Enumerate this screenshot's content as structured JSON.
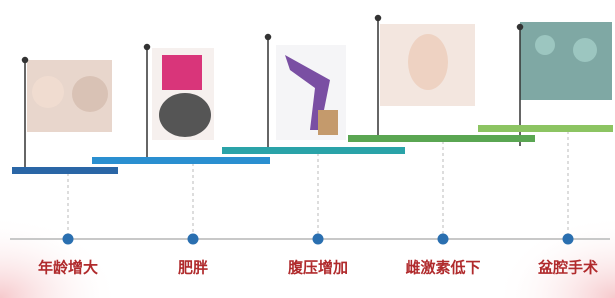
{
  "stages": [
    {
      "label": "年龄增大"
    },
    {
      "label": "肥胖"
    },
    {
      "label": "腹压增加"
    },
    {
      "label": "雌激素低下"
    },
    {
      "label": "盆腔手术"
    }
  ]
}
